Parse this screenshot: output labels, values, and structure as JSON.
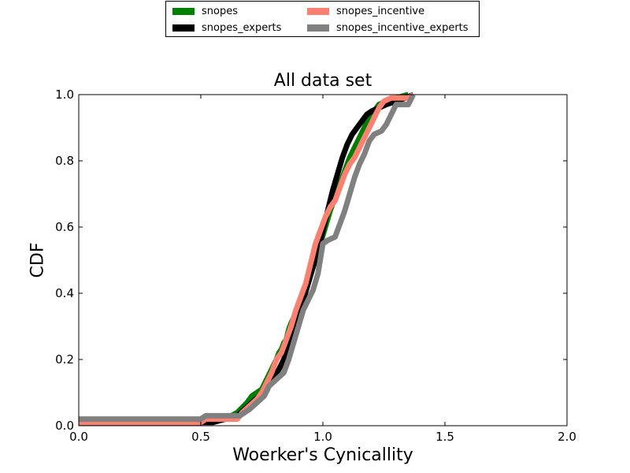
{
  "chart_data": {
    "type": "line",
    "title": "All data set",
    "xlabel": "Woerker's Cynicallity",
    "ylabel": "CDF",
    "xlim": [
      0.0,
      2.0
    ],
    "ylim": [
      0.0,
      1.0
    ],
    "xticks": [
      "0.0",
      "0.5",
      "1.0",
      "1.5",
      "2.0"
    ],
    "yticks": [
      "0.0",
      "0.2",
      "0.4",
      "0.6",
      "0.8",
      "1.0"
    ],
    "grid": false,
    "legend_position": "top-center",
    "series": [
      {
        "name": "snopes",
        "color": "#008000",
        "points": [
          [
            0.0,
            0.01
          ],
          [
            0.5,
            0.01
          ],
          [
            0.6,
            0.02
          ],
          [
            0.65,
            0.04
          ],
          [
            0.69,
            0.07
          ],
          [
            0.71,
            0.09
          ],
          [
            0.73,
            0.1
          ],
          [
            0.75,
            0.11
          ],
          [
            0.77,
            0.14
          ],
          [
            0.79,
            0.17
          ],
          [
            0.81,
            0.2
          ],
          [
            0.82,
            0.22
          ],
          [
            0.83,
            0.23
          ],
          [
            0.84,
            0.25
          ],
          [
            0.85,
            0.26
          ],
          [
            0.86,
            0.29
          ],
          [
            0.87,
            0.31
          ],
          [
            0.89,
            0.34
          ],
          [
            0.91,
            0.38
          ],
          [
            0.93,
            0.42
          ],
          [
            0.95,
            0.46
          ],
          [
            0.97,
            0.5
          ],
          [
            0.99,
            0.55
          ],
          [
            1.01,
            0.6
          ],
          [
            1.03,
            0.65
          ],
          [
            1.05,
            0.69
          ],
          [
            1.07,
            0.73
          ],
          [
            1.09,
            0.77
          ],
          [
            1.11,
            0.81
          ],
          [
            1.13,
            0.84
          ],
          [
            1.15,
            0.87
          ],
          [
            1.17,
            0.9
          ],
          [
            1.19,
            0.93
          ],
          [
            1.21,
            0.95
          ],
          [
            1.23,
            0.97
          ],
          [
            1.26,
            0.98
          ],
          [
            1.3,
            0.99
          ],
          [
            1.35,
            1.0
          ]
        ]
      },
      {
        "name": "snopes_experts",
        "color": "#000000",
        "points": [
          [
            0.0,
            0.01
          ],
          [
            0.55,
            0.01
          ],
          [
            0.6,
            0.02
          ],
          [
            0.65,
            0.03
          ],
          [
            0.68,
            0.05
          ],
          [
            0.71,
            0.07
          ],
          [
            0.74,
            0.09
          ],
          [
            0.76,
            0.11
          ],
          [
            0.78,
            0.13
          ],
          [
            0.8,
            0.15
          ],
          [
            0.82,
            0.17
          ],
          [
            0.84,
            0.2
          ],
          [
            0.85,
            0.22
          ],
          [
            0.86,
            0.25
          ],
          [
            0.87,
            0.27
          ],
          [
            0.89,
            0.3
          ],
          [
            0.9,
            0.33
          ],
          [
            0.92,
            0.38
          ],
          [
            0.94,
            0.43
          ],
          [
            0.96,
            0.48
          ],
          [
            0.98,
            0.53
          ],
          [
            1.0,
            0.59
          ],
          [
            1.02,
            0.65
          ],
          [
            1.04,
            0.71
          ],
          [
            1.06,
            0.76
          ],
          [
            1.08,
            0.81
          ],
          [
            1.1,
            0.85
          ],
          [
            1.12,
            0.88
          ],
          [
            1.14,
            0.9
          ],
          [
            1.16,
            0.92
          ],
          [
            1.18,
            0.94
          ],
          [
            1.2,
            0.95
          ],
          [
            1.23,
            0.96
          ],
          [
            1.26,
            0.97
          ],
          [
            1.3,
            0.98
          ],
          [
            1.34,
            0.99
          ],
          [
            1.37,
            1.0
          ]
        ]
      },
      {
        "name": "snopes_incentive",
        "color": "#fa8072",
        "points": [
          [
            0.0,
            0.01
          ],
          [
            0.5,
            0.01
          ],
          [
            0.52,
            0.02
          ],
          [
            0.65,
            0.02
          ],
          [
            0.67,
            0.04
          ],
          [
            0.7,
            0.06
          ],
          [
            0.73,
            0.08
          ],
          [
            0.75,
            0.1
          ],
          [
            0.77,
            0.13
          ],
          [
            0.79,
            0.16
          ],
          [
            0.81,
            0.2
          ],
          [
            0.83,
            0.22
          ],
          [
            0.85,
            0.26
          ],
          [
            0.87,
            0.3
          ],
          [
            0.89,
            0.35
          ],
          [
            0.91,
            0.39
          ],
          [
            0.93,
            0.43
          ],
          [
            0.95,
            0.49
          ],
          [
            0.97,
            0.55
          ],
          [
            0.99,
            0.59
          ],
          [
            1.01,
            0.63
          ],
          [
            1.03,
            0.66
          ],
          [
            1.05,
            0.68
          ],
          [
            1.07,
            0.72
          ],
          [
            1.09,
            0.76
          ],
          [
            1.11,
            0.79
          ],
          [
            1.13,
            0.81
          ],
          [
            1.15,
            0.84
          ],
          [
            1.17,
            0.87
          ],
          [
            1.19,
            0.9
          ],
          [
            1.21,
            0.93
          ],
          [
            1.23,
            0.96
          ],
          [
            1.25,
            0.98
          ],
          [
            1.28,
            0.99
          ],
          [
            1.35,
            0.99
          ],
          [
            1.37,
            1.0
          ]
        ]
      },
      {
        "name": "snopes_incentive_experts",
        "color": "#808080",
        "points": [
          [
            0.0,
            0.02
          ],
          [
            0.5,
            0.02
          ],
          [
            0.52,
            0.03
          ],
          [
            0.6,
            0.03
          ],
          [
            0.66,
            0.03
          ],
          [
            0.7,
            0.05
          ],
          [
            0.73,
            0.07
          ],
          [
            0.76,
            0.09
          ],
          [
            0.78,
            0.12
          ],
          [
            0.81,
            0.14
          ],
          [
            0.84,
            0.16
          ],
          [
            0.86,
            0.2
          ],
          [
            0.88,
            0.25
          ],
          [
            0.9,
            0.3
          ],
          [
            0.92,
            0.35
          ],
          [
            0.94,
            0.38
          ],
          [
            0.96,
            0.41
          ],
          [
            0.98,
            0.46
          ],
          [
            1.0,
            0.55
          ],
          [
            1.02,
            0.56
          ],
          [
            1.05,
            0.57
          ],
          [
            1.07,
            0.61
          ],
          [
            1.09,
            0.65
          ],
          [
            1.11,
            0.7
          ],
          [
            1.13,
            0.75
          ],
          [
            1.15,
            0.79
          ],
          [
            1.17,
            0.82
          ],
          [
            1.19,
            0.86
          ],
          [
            1.21,
            0.88
          ],
          [
            1.24,
            0.89
          ],
          [
            1.26,
            0.91
          ],
          [
            1.28,
            0.94
          ],
          [
            1.3,
            0.97
          ],
          [
            1.35,
            0.97
          ],
          [
            1.37,
            1.0
          ]
        ]
      }
    ]
  }
}
